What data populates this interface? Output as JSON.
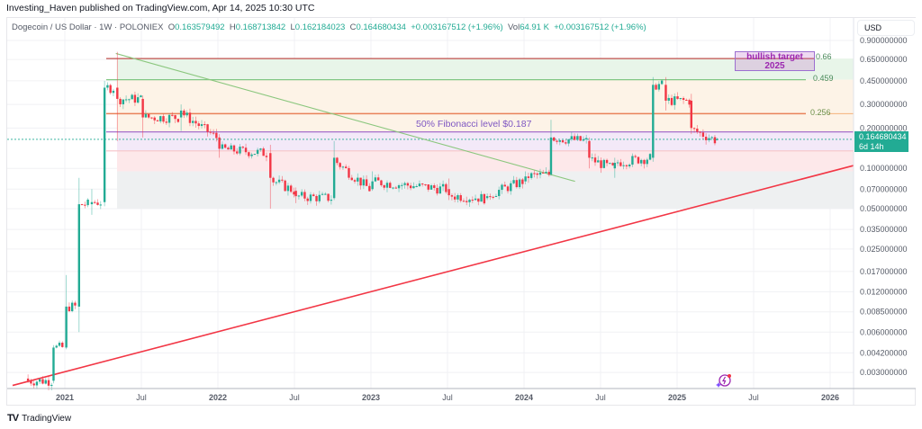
{
  "header": {
    "published_line": "Investing_Haven published on TradingView.com, Apr 14, 2025 10:30 UTC"
  },
  "legend": {
    "symbol": "Dogecoin / US Dollar · 1W · POLONIEX",
    "open_label": "O",
    "open": "0.163579492",
    "high_label": "H",
    "high": "0.168713842",
    "low_label": "L",
    "low": "0.162184023",
    "close_label": "C",
    "close": "0.164680434",
    "change": "+0.003167512 (+1.96%)",
    "vol_label": "Vol",
    "vol": "64.91 K",
    "vol_change": "+0.003167512 (+1.96%)"
  },
  "price_axis": {
    "currency": "USD",
    "ticks": [
      "0.900000000",
      "0.650000000",
      "0.450000000",
      "0.300000000",
      "0.200000000",
      "0.100000000",
      "0.070000000",
      "0.050000000",
      "0.035000000",
      "0.025000000",
      "0.017000000",
      "0.012000000",
      "0.008500000",
      "0.006000000",
      "0.004200000",
      "0.003000000"
    ],
    "current_price": "0.164680434",
    "countdown": "6d 14h"
  },
  "time_axis": {
    "ticks": [
      {
        "label": "2021",
        "year": true
      },
      {
        "label": "Jul",
        "year": false
      },
      {
        "label": "2022",
        "year": true
      },
      {
        "label": "Jul",
        "year": false
      },
      {
        "label": "2023",
        "year": true
      },
      {
        "label": "Jul",
        "year": false
      },
      {
        "label": "2024",
        "year": true
      },
      {
        "label": "Jul",
        "year": false
      },
      {
        "label": "2025",
        "year": true
      },
      {
        "label": "Jul",
        "year": false
      },
      {
        "label": "2026",
        "year": true
      }
    ]
  },
  "annotations": {
    "bullish_target_line1": "bullish target",
    "bullish_target_line2": "2025",
    "fib_note": "50% Fibonacci level $0.187",
    "fib_066": "0.66",
    "fib_0459": "0.459",
    "fib_0256": "0.256"
  },
  "footer": {
    "brand": "TradingView",
    "brand_mark": "TV"
  },
  "colors": {
    "up": "#22ab94",
    "down": "#f23645",
    "fib_066_line": "#c0504d",
    "fib_0459_line": "#81c784",
    "fib_0256_line": "#e8825a",
    "fib_0187_line": "#9c5fc7",
    "trend_support": "#f23645",
    "trend_resistance": "#8bc77e"
  },
  "chart_data": {
    "type": "candlestick",
    "title": "Dogecoin / US Dollar · 1W · POLONIEX",
    "xlabel": "",
    "ylabel": "USD",
    "y_scale": "log",
    "ylim": [
      0.0025,
      1.0
    ],
    "x_range": [
      "2020-10",
      "2026-03"
    ],
    "legend_position": "top-left",
    "grid": true,
    "last": {
      "open": 0.163579492,
      "high": 0.168713842,
      "low": 0.162184023,
      "close": 0.164680434,
      "change": 0.003167512,
      "change_pct": 1.96,
      "volume": "64.91K"
    },
    "horizontal_levels": [
      {
        "label": "0.66",
        "price": 0.66,
        "color": "#c0504d"
      },
      {
        "label": "0.459",
        "price": 0.459,
        "color": "#81c784"
      },
      {
        "label": "0.256",
        "price": 0.256,
        "color": "#e8825a"
      },
      {
        "label": "50% Fibonacci level $0.187",
        "price": 0.187,
        "color": "#9c5fc7"
      }
    ],
    "fib_zones": [
      {
        "from": 0.66,
        "to": 0.459,
        "color": "#e8f5e9"
      },
      {
        "from": 0.459,
        "to": 0.256,
        "color": "#fdf3e7"
      },
      {
        "from": 0.256,
        "to": 0.187,
        "color": "#fdf3e7"
      },
      {
        "from": 0.187,
        "to": 0.135,
        "color": "#f3e9f8"
      },
      {
        "from": 0.135,
        "to": 0.095,
        "color": "#fde8ea"
      },
      {
        "from": 0.095,
        "to": 0.05,
        "color": "#eef0f1"
      }
    ],
    "trendlines": [
      {
        "name": "resistance",
        "from": {
          "date": "2021-05",
          "price": 0.72
        },
        "to": {
          "date": "2024-05",
          "price": 0.08
        },
        "color": "#8bc77e"
      },
      {
        "name": "support",
        "from": {
          "date": "2020-10",
          "price": 0.0024
        },
        "to": {
          "date": "2026-03",
          "price": 0.105
        },
        "color": "#f23645"
      }
    ],
    "annotation_box": {
      "label": "bullish target 2025",
      "price_top": 0.72,
      "price_bottom": 0.55
    },
    "candles_weekly_approx": [
      {
        "t": "2020-10",
        "o": 0.0027,
        "h": 0.0029,
        "l": 0.0025,
        "c": 0.0026
      },
      {
        "t": "2020-12",
        "o": 0.0026,
        "h": 0.0048,
        "l": 0.0025,
        "c": 0.0046
      },
      {
        "t": "2021-01",
        "o": 0.0046,
        "h": 0.016,
        "l": 0.0045,
        "c": 0.0093
      },
      {
        "t": "2021-02",
        "o": 0.0093,
        "h": 0.085,
        "l": 0.006,
        "c": 0.054
      },
      {
        "t": "2021-03",
        "o": 0.054,
        "h": 0.07,
        "l": 0.045,
        "c": 0.056
      },
      {
        "t": "2021-04",
        "o": 0.056,
        "h": 0.45,
        "l": 0.053,
        "c": 0.4
      },
      {
        "t": "2021-05",
        "o": 0.4,
        "h": 0.74,
        "l": 0.16,
        "c": 0.33
      },
      {
        "t": "2021-07",
        "o": 0.33,
        "h": 0.35,
        "l": 0.17,
        "c": 0.24
      },
      {
        "t": "2021-10",
        "o": 0.24,
        "h": 0.3,
        "l": 0.19,
        "c": 0.27
      },
      {
        "t": "2022-01",
        "o": 0.17,
        "h": 0.18,
        "l": 0.12,
        "c": 0.14
      },
      {
        "t": "2022-05",
        "o": 0.13,
        "h": 0.15,
        "l": 0.05,
        "c": 0.085
      },
      {
        "t": "2022-07",
        "o": 0.068,
        "h": 0.072,
        "l": 0.055,
        "c": 0.062
      },
      {
        "t": "2022-10",
        "o": 0.06,
        "h": 0.16,
        "l": 0.058,
        "c": 0.12
      },
      {
        "t": "2023-01",
        "o": 0.07,
        "h": 0.095,
        "l": 0.068,
        "c": 0.08
      },
      {
        "t": "2023-07",
        "o": 0.07,
        "h": 0.084,
        "l": 0.058,
        "c": 0.063
      },
      {
        "t": "2023-10",
        "o": 0.06,
        "h": 0.065,
        "l": 0.058,
        "c": 0.062
      },
      {
        "t": "2024-01",
        "o": 0.08,
        "h": 0.095,
        "l": 0.076,
        "c": 0.087
      },
      {
        "t": "2024-03",
        "o": 0.09,
        "h": 0.23,
        "l": 0.088,
        "c": 0.17
      },
      {
        "t": "2024-06",
        "o": 0.16,
        "h": 0.17,
        "l": 0.1,
        "c": 0.12
      },
      {
        "t": "2024-08",
        "o": 0.1,
        "h": 0.12,
        "l": 0.085,
        "c": 0.11
      },
      {
        "t": "2024-11",
        "o": 0.12,
        "h": 0.48,
        "l": 0.12,
        "c": 0.42
      },
      {
        "t": "2024-12",
        "o": 0.42,
        "h": 0.48,
        "l": 0.27,
        "c": 0.32
      },
      {
        "t": "2025-02",
        "o": 0.32,
        "h": 0.36,
        "l": 0.18,
        "c": 0.2
      },
      {
        "t": "2025-04",
        "o": 0.163579492,
        "h": 0.168713842,
        "l": 0.162184023,
        "c": 0.164680434
      }
    ]
  }
}
